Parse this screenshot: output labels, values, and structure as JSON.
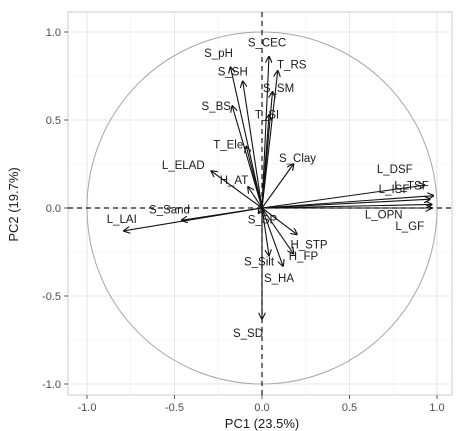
{
  "chart_data": {
    "type": "scatter",
    "subtype": "pca-biplot-correlation-circle",
    "title": "",
    "xlabel": "PC1 (23.5%)",
    "ylabel": "PC2 (19.7%)",
    "xlim": [
      -1.05,
      1.05
    ],
    "ylim": [
      -1.0,
      1.05
    ],
    "xticks": [
      -1.0,
      -0.5,
      0.0,
      0.5,
      1.0
    ],
    "xtick_labels": [
      "-1.0",
      "-0.5",
      "0.0",
      "0.5",
      "1.0"
    ],
    "yticks": [
      -1.0,
      -0.5,
      0.0,
      0.5,
      1.0
    ],
    "ytick_labels": [
      "-1.0",
      "-0.5",
      "0.0",
      "0.5",
      "1.0"
    ],
    "grid": true,
    "unit_circle": true,
    "reference_lines": {
      "x": 0,
      "y": 0,
      "style": "dashed"
    },
    "vectors": [
      {
        "label": "S_CEC",
        "x": 0.04,
        "y": 0.86
      },
      {
        "label": "T_RS",
        "x": 0.09,
        "y": 0.78
      },
      {
        "label": "S_pH",
        "x": -0.18,
        "y": 0.8
      },
      {
        "label": "S_SH",
        "x": -0.11,
        "y": 0.72
      },
      {
        "label": "S_SM",
        "x": 0.06,
        "y": 0.66
      },
      {
        "label": "S_BS",
        "x": -0.17,
        "y": 0.58
      },
      {
        "label": "T_SI",
        "x": 0.04,
        "y": 0.53
      },
      {
        "label": "T_Ele",
        "x": -0.09,
        "y": 0.35
      },
      {
        "label": "L_ELAD",
        "x": -0.29,
        "y": 0.21
      },
      {
        "label": "H_AT",
        "x": -0.08,
        "y": 0.12
      },
      {
        "label": "S_Clay",
        "x": 0.18,
        "y": 0.25
      },
      {
        "label": "L_DSF",
        "x": 0.93,
        "y": 0.13
      },
      {
        "label": "L_TSF",
        "x": 0.98,
        "y": 0.07
      },
      {
        "label": "L_ISF",
        "x": 0.96,
        "y": 0.05
      },
      {
        "label": "L_OPN",
        "x": 0.97,
        "y": 0.02
      },
      {
        "label": "L_GF",
        "x": 0.97,
        "y": 0.0
      },
      {
        "label": "L_LAI",
        "x": -0.79,
        "y": -0.13
      },
      {
        "label": "S_Sand",
        "x": -0.46,
        "y": -0.07
      },
      {
        "label": "S_SP",
        "x": -0.02,
        "y": -0.03
      },
      {
        "label": "H_STP",
        "x": 0.2,
        "y": -0.15
      },
      {
        "label": "S_Silt",
        "x": 0.04,
        "y": -0.27
      },
      {
        "label": "H_FP",
        "x": 0.18,
        "y": -0.26
      },
      {
        "label": "S_HA",
        "x": 0.12,
        "y": -0.33
      },
      {
        "label": "S_SD",
        "x": 0.0,
        "y": -0.63
      }
    ]
  }
}
